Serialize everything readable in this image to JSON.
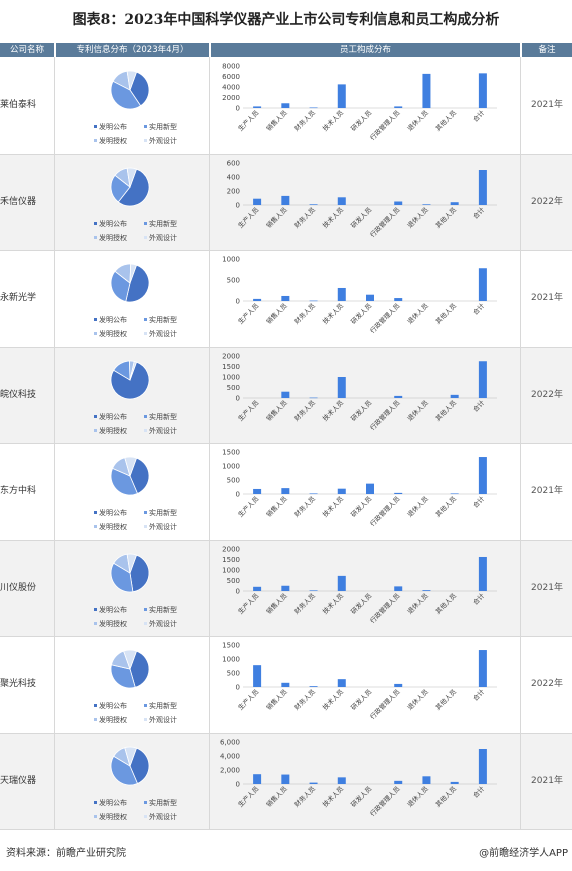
{
  "title": "图表8：2023年中国科学仪器产业上市公司专利信息和员工构成分析",
  "headers": {
    "company": "公司名称",
    "patent": "专利信息分布（2023年4月）",
    "staff": "员工构成分布",
    "note": "备注"
  },
  "legend": [
    "发明公布",
    "实用新型",
    "发明授权",
    "外观设计"
  ],
  "colors": {
    "pie": [
      "#4472c4",
      "#6b98e0",
      "#a9c3ec",
      "#d7e3f5"
    ],
    "bar": "#3f7fe0",
    "header_bg": "#5a7b9a"
  },
  "footer": {
    "source": "资料来源：前瞻产业研究院",
    "brand": "@前瞻经济学人APP"
  },
  "chart_data": [
    {
      "type": "bar",
      "company": "莱伯泰科",
      "note": "2021年",
      "categories": [
        "生产人员",
        "销售人员",
        "财务人员",
        "技术人员",
        "研发人员",
        "行政管理人员",
        "退休人员",
        "其他人员",
        "合计"
      ],
      "values": [
        300,
        900,
        100,
        4500,
        0,
        300,
        6500,
        0,
        6600
      ],
      "yticks": [
        "8000",
        "6000",
        "4000",
        "2000",
        "0"
      ],
      "ymax": 8000,
      "pie": [
        35,
        42,
        15,
        8
      ]
    },
    {
      "type": "bar",
      "company": "禾信仪器",
      "note": "2022年",
      "categories": [
        "生产人员",
        "销售人员",
        "财务人员",
        "技术人员",
        "研发人员",
        "行政管理人员",
        "退休人员",
        "其他人员",
        "合计"
      ],
      "values": [
        90,
        130,
        10,
        110,
        0,
        50,
        10,
        40,
        500
      ],
      "yticks": [
        "600",
        "400",
        "200",
        "0"
      ],
      "ymax": 600,
      "pie": [
        55,
        25,
        12,
        8
      ]
    },
    {
      "type": "bar",
      "company": "永新光学",
      "note": "2021年",
      "categories": [
        "生产人员",
        "销售人员",
        "财务人员",
        "技术人员",
        "研发人员",
        "行政管理人员",
        "退休人员",
        "其他人员",
        "合计"
      ],
      "values": [
        50,
        120,
        10,
        310,
        150,
        70,
        0,
        0,
        780
      ],
      "yticks": [
        "1000",
        "500",
        "0"
      ],
      "ymax": 1000,
      "pie": [
        48,
        32,
        15,
        5
      ]
    },
    {
      "type": "bar",
      "company": "皖仪科技",
      "note": "2022年",
      "categories": [
        "生产人员",
        "销售人员",
        "财务人员",
        "技术人员",
        "研发人员",
        "行政管理人员",
        "退休人员",
        "其他人员",
        "合计"
      ],
      "values": [
        0,
        300,
        20,
        1000,
        0,
        100,
        0,
        150,
        1750
      ],
      "yticks": [
        "2000",
        "1500",
        "1000",
        "500",
        "0"
      ],
      "ymax": 2000,
      "pie": [
        78,
        16,
        4,
        2
      ]
    },
    {
      "type": "bar",
      "company": "东方中科",
      "note": "2021年",
      "categories": [
        "生产人员",
        "销售人员",
        "财务人员",
        "技术人员",
        "研发人员",
        "行政管理人员",
        "退休人员",
        "其他人员",
        "合计"
      ],
      "values": [
        180,
        210,
        20,
        190,
        370,
        40,
        0,
        20,
        1320
      ],
      "yticks": [
        "1500",
        "1000",
        "500",
        "0"
      ],
      "ymax": 1500,
      "pie": [
        38,
        38,
        14,
        10
      ]
    },
    {
      "type": "bar",
      "company": "川仪股份",
      "note": "2021年",
      "categories": [
        "生产人员",
        "销售人员",
        "财务人员",
        "技术人员",
        "研发人员",
        "行政管理人员",
        "退休人员",
        "其他人员",
        "合计"
      ],
      "values": [
        200,
        250,
        30,
        720,
        0,
        220,
        40,
        0,
        1620
      ],
      "yticks": [
        "2000",
        "1500",
        "1000",
        "500",
        "0"
      ],
      "ymax": 2000,
      "pie": [
        42,
        36,
        14,
        8
      ]
    },
    {
      "type": "bar",
      "company": "聚光科技",
      "note": "2022年",
      "categories": [
        "生产人员",
        "销售人员",
        "财务人员",
        "技术人员",
        "研发人员",
        "行政管理人员",
        "退休人员",
        "其他人员",
        "合计"
      ],
      "values": [
        780,
        150,
        30,
        280,
        0,
        110,
        0,
        0,
        1320
      ],
      "yticks": [
        "1500",
        "1000",
        "500",
        "0"
      ],
      "ymax": 1500,
      "pie": [
        40,
        33,
        16,
        11
      ]
    },
    {
      "type": "bar",
      "company": "天瑞仪器",
      "note": "2021年",
      "categories": [
        "生产人员",
        "销售人员",
        "财务人员",
        "技术人员",
        "研发人员",
        "行政管理人员",
        "退休人员",
        "其他人员",
        "合计"
      ],
      "values": [
        1400,
        1350,
        200,
        950,
        0,
        450,
        1100,
        300,
        5000
      ],
      "yticks": [
        "6,000",
        "4,000",
        "2,000",
        "0"
      ],
      "ymax": 6000,
      "pie": [
        38,
        40,
        12,
        10
      ]
    }
  ]
}
